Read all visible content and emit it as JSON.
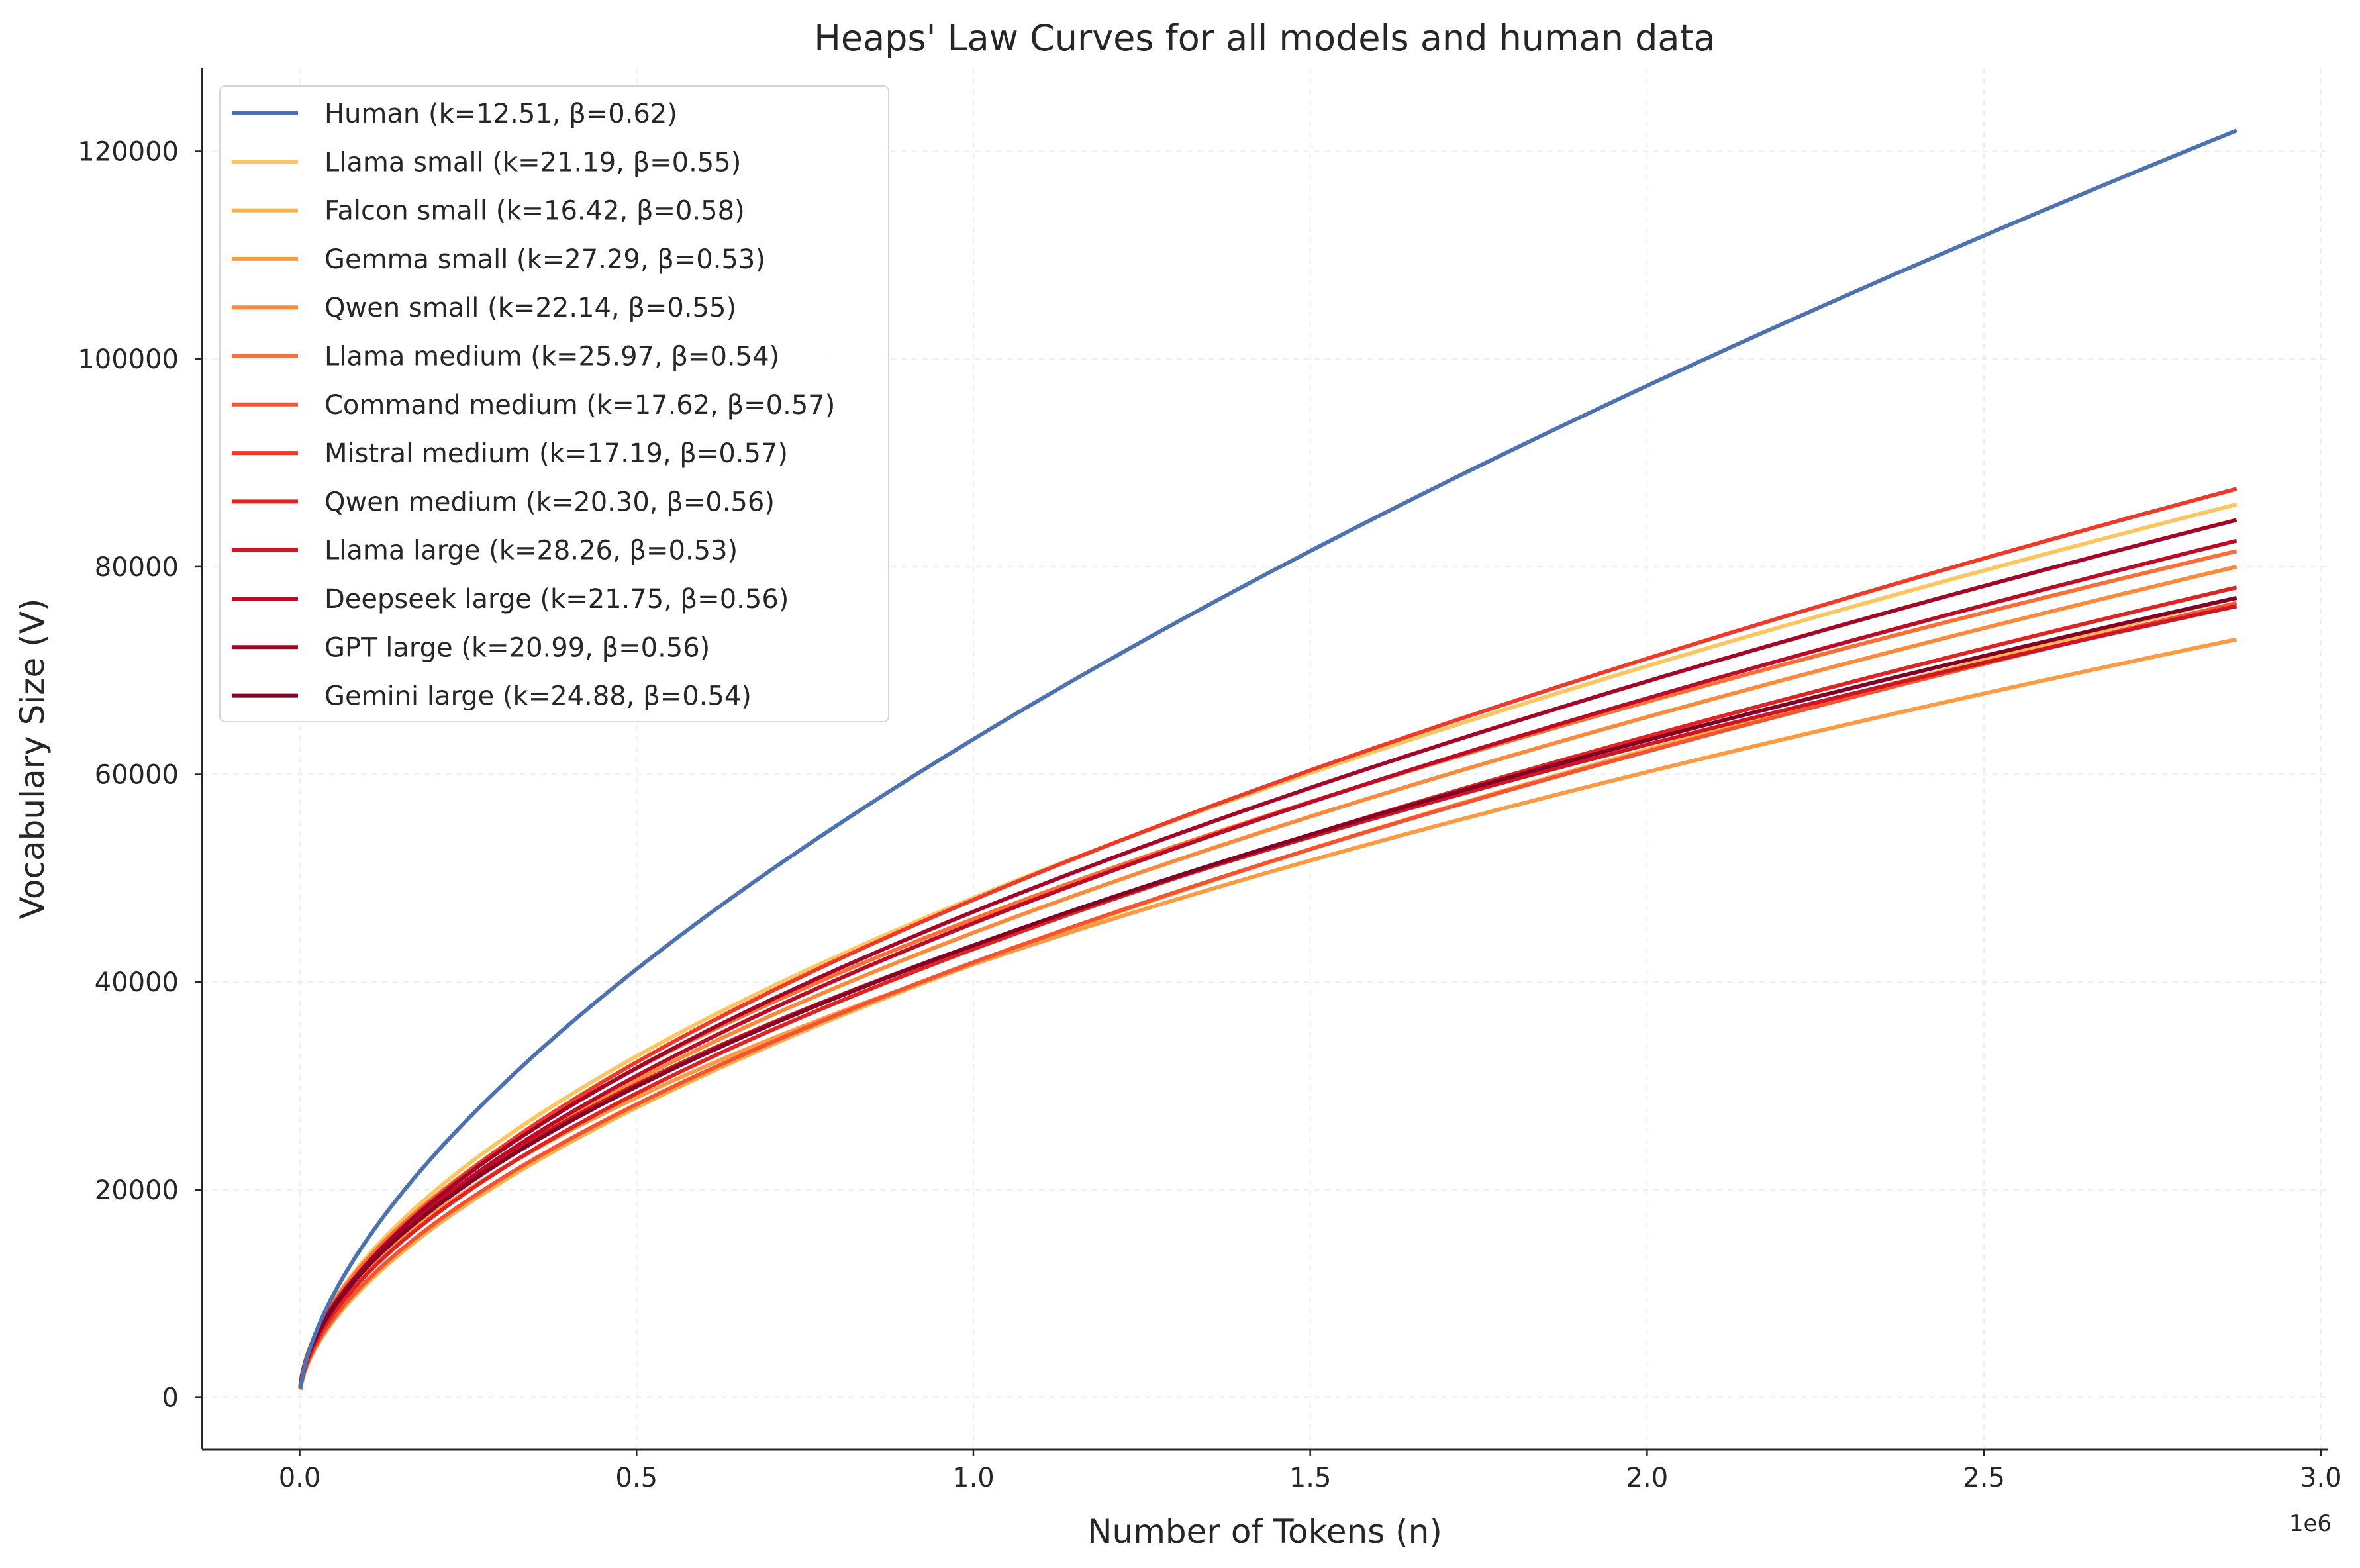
{
  "chart_data": {
    "type": "line",
    "title": "Heaps' Law Curves for all models and human data",
    "xlabel": "Number of Tokens (n)",
    "ylabel": "Vocabulary Size (V)",
    "x_offset_label": "1e6",
    "x_scale": 1000000,
    "xlim": [
      -0.145,
      3.01
    ],
    "ylim": [
      -5000,
      128000
    ],
    "x_ticks": [
      0.0,
      0.5,
      1.0,
      1.5,
      2.0,
      2.5,
      3.0
    ],
    "x_tick_labels": [
      "0.0",
      "0.5",
      "1.0",
      "1.5",
      "2.0",
      "2.5",
      "3.0"
    ],
    "y_ticks": [
      0,
      20000,
      40000,
      60000,
      80000,
      100000,
      120000
    ],
    "y_tick_labels": [
      "0",
      "20000",
      "40000",
      "60000",
      "80000",
      "100000",
      "120000"
    ],
    "x_range": [
      1000,
      2875000
    ],
    "legend_position": "upper-left",
    "grid": true,
    "series": [
      {
        "name": "Human",
        "label": "Human (k=12.51, β=0.62)",
        "k": 12.51,
        "beta": 0.62,
        "final_value": 122000,
        "color": "#4c72b0"
      },
      {
        "name": "Llama small",
        "label": "Llama small (k=21.19, β=0.55)",
        "k": 21.19,
        "beta": 0.55,
        "final_value": 86000,
        "color": "#fec561"
      },
      {
        "name": "Falcon small",
        "label": "Falcon small (k=16.42, β=0.58)",
        "k": 16.42,
        "beta": 0.58,
        "final_value": 77000,
        "color": "#fdb04c"
      },
      {
        "name": "Gemma small",
        "label": "Gemma small (k=27.29, β=0.53)",
        "k": 27.29,
        "beta": 0.53,
        "final_value": 73000,
        "color": "#fd9a42"
      },
      {
        "name": "Qwen small",
        "label": "Qwen small (k=22.14, β=0.55)",
        "k": 22.14,
        "beta": 0.55,
        "final_value": 80000,
        "color": "#fc8a3c"
      },
      {
        "name": "Llama medium",
        "label": "Llama medium (k=25.97, β=0.54)",
        "k": 25.97,
        "beta": 0.54,
        "final_value": 81500,
        "color": "#fb6e35"
      },
      {
        "name": "Command medium",
        "label": "Command medium (k=17.62, β=0.57)",
        "k": 17.62,
        "beta": 0.57,
        "final_value": 76500,
        "color": "#f65330"
      },
      {
        "name": "Mistral medium",
        "label": "Mistral medium (k=17.19, β=0.57)",
        "k": 17.19,
        "beta": 0.57,
        "final_value": 87500,
        "color": "#ed3a29"
      },
      {
        "name": "Qwen medium",
        "label": "Qwen medium (k=20.30, β=0.56)",
        "k": 20.3,
        "beta": 0.56,
        "final_value": 78000,
        "color": "#df2423"
      },
      {
        "name": "Llama large",
        "label": "Llama large (k=28.26, β=0.53)",
        "k": 28.26,
        "beta": 0.53,
        "final_value": 76200,
        "color": "#cf1625"
      },
      {
        "name": "Deepseek large",
        "label": "Deepseek large (k=21.75, β=0.56)",
        "k": 21.75,
        "beta": 0.56,
        "final_value": 82500,
        "color": "#bc0c27"
      },
      {
        "name": "GPT large",
        "label": "GPT large (k=20.99, β=0.56)",
        "k": 20.99,
        "beta": 0.56,
        "final_value": 84500,
        "color": "#a50526"
      },
      {
        "name": "Gemini large",
        "label": "Gemini large (k=24.88, β=0.54)",
        "k": 24.88,
        "beta": 0.54,
        "final_value": 77000,
        "color": "#850026"
      }
    ]
  }
}
